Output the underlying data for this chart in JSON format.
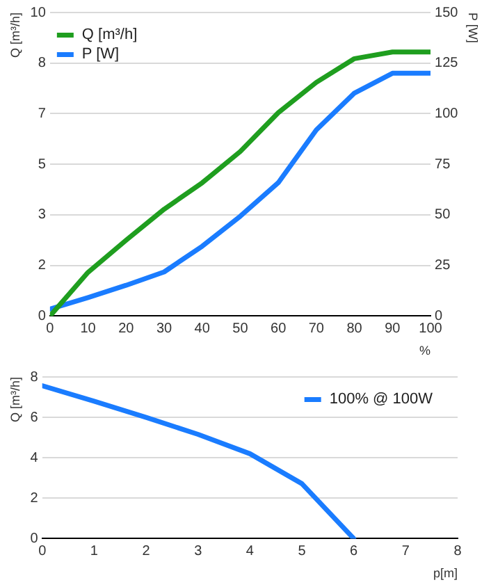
{
  "chart_data": [
    {
      "type": "line",
      "xlabel": "%",
      "ylabel": "Q [m³/h]",
      "y2label": "P [W]",
      "x": [
        0,
        10,
        20,
        30,
        40,
        50,
        60,
        70,
        80,
        90,
        100
      ],
      "series": [
        {
          "name": "Q [m³/h]",
          "color": "#1f9e1f",
          "values": [
            0,
            1.44,
            2.5,
            3.52,
            4.39,
            5.42,
            6.7,
            7.7,
            8.48,
            8.7,
            8.7
          ]
        },
        {
          "name": "P [W]",
          "color": "#1a7cff",
          "axis": "y2",
          "values": [
            3.4,
            9.1,
            15.2,
            21.8,
            34.5,
            49.3,
            65.9,
            92,
            110.2,
            120,
            120
          ]
        }
      ],
      "xlim": [
        0,
        100
      ],
      "xticks": [
        0,
        10,
        20,
        30,
        40,
        50,
        60,
        70,
        80,
        90,
        100
      ],
      "ylim": [
        0,
        10
      ],
      "yticks": [
        0,
        {
          "value": 1.667,
          "label": "2"
        },
        {
          "value": 3.333,
          "label": "3"
        },
        5,
        {
          "value": 6.667,
          "label": "7"
        },
        {
          "value": 8.333,
          "label": "8"
        },
        10
      ],
      "y2lim": [
        0,
        150
      ],
      "y2ticks": [
        0,
        25,
        50,
        75,
        100,
        125,
        150
      ],
      "grid": "y",
      "legend": "top left",
      "line_style": "solid",
      "marker": "none"
    },
    {
      "type": "line",
      "xlabel": "p[m]",
      "ylabel": "Q [m³/h]",
      "x": [
        0,
        1,
        2,
        3,
        4,
        5,
        6
      ],
      "series": [
        {
          "name": "100% @ 100W",
          "color": "#1a7cff",
          "values": [
            7.57,
            6.8,
            6.0,
            5.16,
            4.2,
            2.72,
            0
          ]
        }
      ],
      "xlim": [
        0,
        8
      ],
      "xticks": [
        0,
        1,
        2,
        3,
        4,
        5,
        6,
        7,
        8
      ],
      "ylim": [
        0,
        8
      ],
      "yticks": [
        0,
        2,
        4,
        6,
        8
      ],
      "grid": "y",
      "legend": "top right",
      "line_style": "solid",
      "marker": "none"
    }
  ]
}
